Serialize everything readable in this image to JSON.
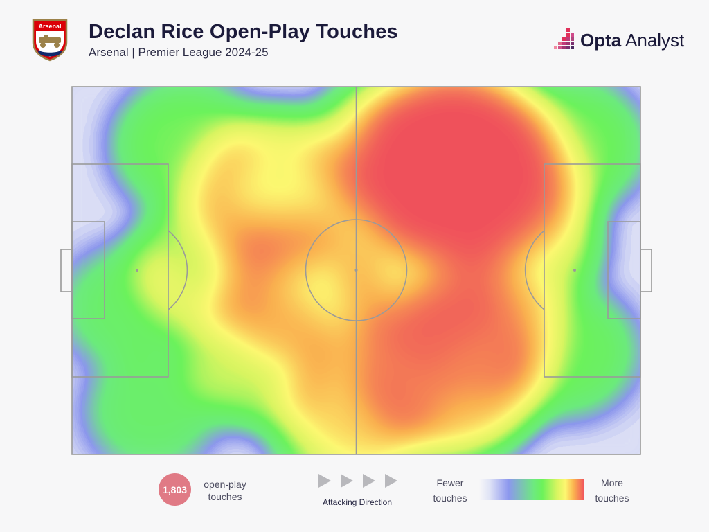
{
  "header": {
    "title": "Declan Rice Open-Play Touches",
    "subtitle": "Arsenal | Premier League 2024-25",
    "crest_text": "Arsenal",
    "brand_bold": "Opta",
    "brand_light": " Analyst"
  },
  "footer": {
    "touch_count": "1,803",
    "touch_label": "open-play touches",
    "direction_label": "Attacking Direction",
    "legend_low": "Fewer touches",
    "legend_high": "More touches"
  },
  "colors": {
    "background": "#f7f7f8",
    "pitch_lines": "#9a9a9a",
    "badge": "#e07a85",
    "title": "#1b1a3a",
    "crest_red": "#db0007",
    "crest_gold": "#9c824a"
  },
  "chart_data": {
    "type": "heatmap",
    "title": "Declan Rice Open-Play Touches",
    "subtitle": "Arsenal | Premier League 2024-25",
    "total_touches": 1803,
    "attacking_direction": "left-to-right",
    "pitch_units": {
      "x": [
        0,
        100
      ],
      "y": [
        0,
        100
      ]
    },
    "hotspots": [
      {
        "x": 67,
        "y": 22,
        "intensity": 1.0
      },
      {
        "x": 75,
        "y": 28,
        "intensity": 0.55
      },
      {
        "x": 56,
        "y": 18,
        "intensity": 0.45
      },
      {
        "x": 36,
        "y": 30,
        "intensity": 0.6
      },
      {
        "x": 40,
        "y": 55,
        "intensity": 0.55
      },
      {
        "x": 33,
        "y": 72,
        "intensity": 0.4
      },
      {
        "x": 62,
        "y": 52,
        "intensity": 0.55
      },
      {
        "x": 66,
        "y": 76,
        "intensity": 0.75
      },
      {
        "x": 72,
        "y": 66,
        "intensity": 0.45
      },
      {
        "x": 78,
        "y": 42,
        "intensity": 0.45
      },
      {
        "x": 52,
        "y": 84,
        "intensity": 0.45
      },
      {
        "x": 24,
        "y": 48,
        "intensity": 0.35
      },
      {
        "x": 20,
        "y": 16,
        "intensity": 0.25
      },
      {
        "x": 88,
        "y": 16,
        "intensity": 0.25
      },
      {
        "x": 87,
        "y": 72,
        "intensity": 0.22
      },
      {
        "x": 10,
        "y": 60,
        "intensity": 0.16
      },
      {
        "x": 14,
        "y": 88,
        "intensity": 0.14
      },
      {
        "x": 48,
        "y": 92,
        "intensity": 0.3
      }
    ],
    "legend": {
      "low": "Fewer touches",
      "high": "More touches"
    }
  }
}
